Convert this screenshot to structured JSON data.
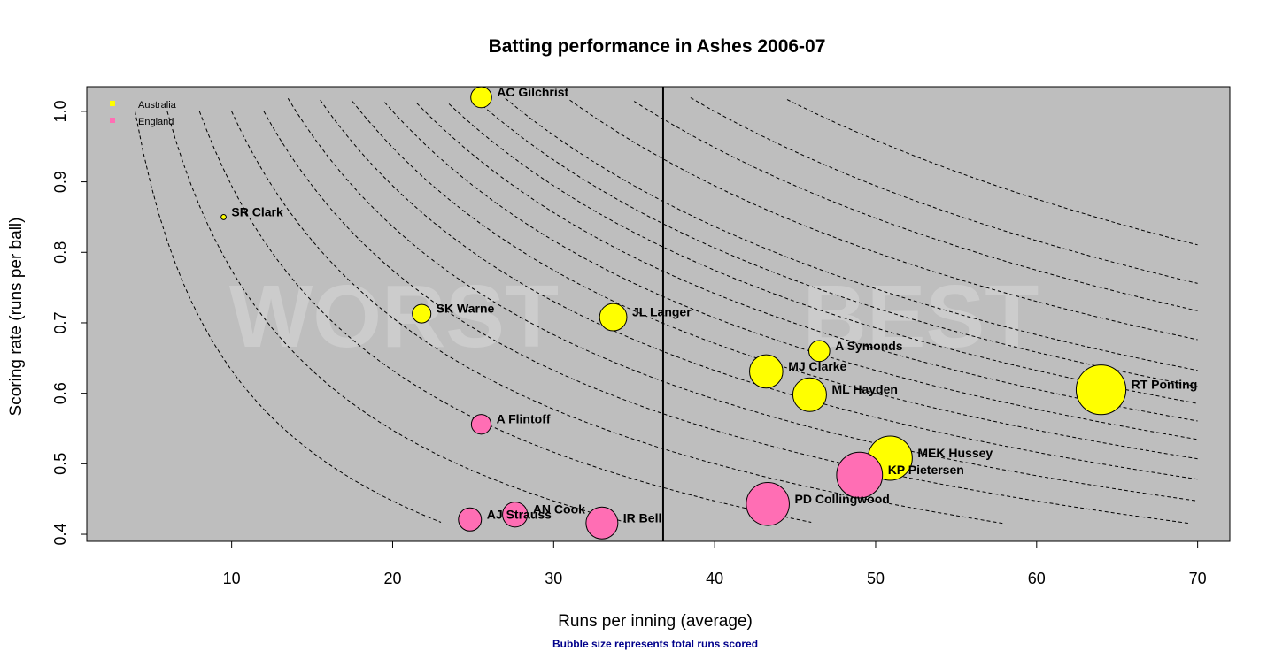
{
  "chart_data": {
    "type": "scatter",
    "title": "Batting performance in Ashes 2006-07",
    "xlabel": "Runs per inning (average)",
    "ylabel": "Scoring rate (runs per ball)",
    "note": "Bubble size represents total runs scored",
    "xlim": [
      1,
      72
    ],
    "ylim": [
      0.39,
      1.035
    ],
    "xticks": [
      10,
      20,
      30,
      40,
      50,
      60,
      70
    ],
    "yticks": [
      0.4,
      0.5,
      0.6,
      0.7,
      0.8,
      0.9,
      1.0
    ],
    "xtick_labels": [
      "10",
      "20",
      "30",
      "40",
      "50",
      "60",
      "70"
    ],
    "ytick_labels": [
      "0.4",
      "0.5",
      "0.6",
      "0.7",
      "0.8",
      "0.9",
      "1.0"
    ],
    "background": "#bebebe",
    "average_line_x": 36.8,
    "watermarks": [
      "WORST",
      "BEST"
    ],
    "legend": {
      "position": "top-left",
      "entries": [
        {
          "name": "Australia",
          "color": "#ffff00"
        },
        {
          "name": "England",
          "color": "#ff6eb4"
        }
      ]
    },
    "contour_products": [
      4,
      6,
      8,
      10,
      12,
      14,
      16,
      18,
      20,
      22,
      24,
      26,
      28,
      32,
      36,
      40,
      46
    ],
    "points": [
      {
        "name": "AC Gilchrist",
        "team": "Australia",
        "x": 25.5,
        "y": 1.02,
        "runs": 102
      },
      {
        "name": "SR Clark",
        "team": "Australia",
        "x": 9.5,
        "y": 0.85,
        "runs": 6
      },
      {
        "name": "SK Warne",
        "team": "Australia",
        "x": 21.8,
        "y": 0.713,
        "runs": 80
      },
      {
        "name": "JL Langer",
        "team": "Australia",
        "x": 33.7,
        "y": 0.708,
        "runs": 174
      },
      {
        "name": "A Symonds",
        "team": "Australia",
        "x": 46.5,
        "y": 0.66,
        "runs": 101
      },
      {
        "name": "MJ Clarke",
        "team": "Australia",
        "x": 43.2,
        "y": 0.631,
        "runs": 259
      },
      {
        "name": "ML Hayden",
        "team": "Australia",
        "x": 45.9,
        "y": 0.598,
        "runs": 265
      },
      {
        "name": "RT Ponting",
        "team": "Australia",
        "x": 64.0,
        "y": 0.605,
        "runs": 576
      },
      {
        "name": "MEK Hussey",
        "team": "Australia",
        "x": 50.9,
        "y": 0.508,
        "runs": 458
      },
      {
        "name": "KP Pietersen",
        "team": "England",
        "x": 49.0,
        "y": 0.484,
        "runs": 490
      },
      {
        "name": "PD Collingwood",
        "team": "England",
        "x": 43.3,
        "y": 0.443,
        "runs": 433
      },
      {
        "name": "A Flintoff",
        "team": "England",
        "x": 25.5,
        "y": 0.556,
        "runs": 90
      },
      {
        "name": "AJ Strauss",
        "team": "England",
        "x": 24.8,
        "y": 0.421,
        "runs": 124
      },
      {
        "name": "AN Cook",
        "team": "England",
        "x": 27.6,
        "y": 0.428,
        "runs": 145
      },
      {
        "name": "IR Bell",
        "team": "England",
        "x": 33.0,
        "y": 0.416,
        "runs": 236
      }
    ]
  }
}
